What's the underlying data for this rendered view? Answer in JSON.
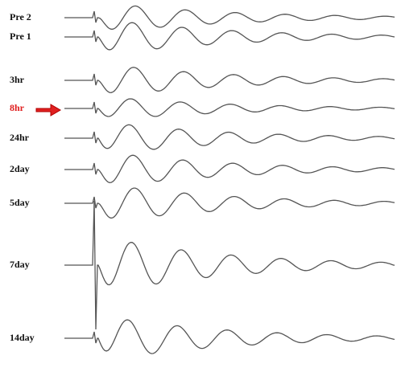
{
  "traces": [
    {
      "label": "Pre 2"
    },
    {
      "label": "Pre 1"
    },
    {
      "label": "3hr"
    },
    {
      "label": "8hr"
    },
    {
      "label": "24hr"
    },
    {
      "label": "2day"
    },
    {
      "label": "5day"
    },
    {
      "label": "7day"
    },
    {
      "label": "14day"
    }
  ]
}
